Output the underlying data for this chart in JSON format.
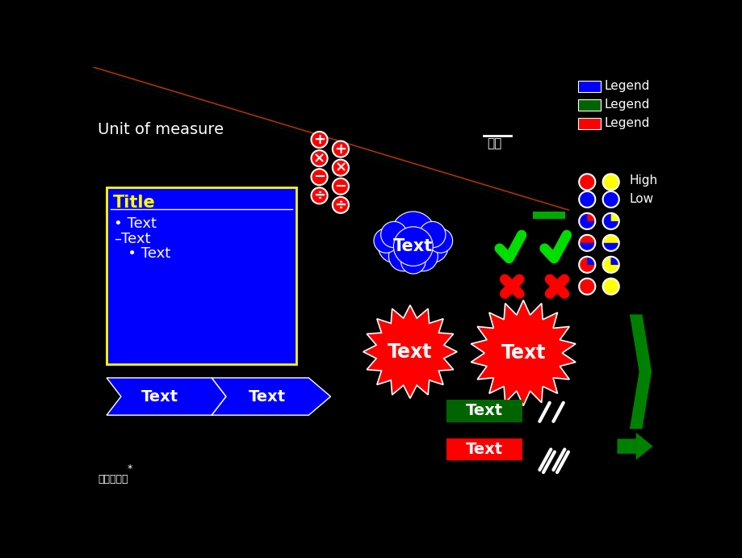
{
  "bg_color": "#000000",
  "title_text": "Unit of measure",
  "title_color": "#ffffff",
  "title_fontsize": 14,
  "legend_items": [
    {
      "color": "#0000ff",
      "label": "Legend"
    },
    {
      "color": "#006400",
      "label": "Legend"
    },
    {
      "color": "#ff0000",
      "label": "Legend"
    }
  ],
  "source_text": "资料来源：",
  "star_text": "*",
  "example_label": "例子",
  "high_label": "High",
  "low_label": "Low",
  "blue_box_title": "Title",
  "blue_box_bullets": [
    "• Text",
    "–Text",
    "   • Text"
  ],
  "arrow_text1": "Text",
  "arrow_text2": "Text",
  "cloud_text": "Text",
  "burst1_text": "Text",
  "burst2_text": "Text",
  "green_rect_text": "Text",
  "red_rect_text": "Text",
  "math_syms": [
    "+",
    "×",
    "−",
    "÷"
  ],
  "pie_configs": [
    [
      790,
      185,
      13,
      [
        [
          "red",
          0,
          360
        ]
      ]
    ],
    [
      828,
      185,
      13,
      [
        [
          "yellow",
          0,
          360
        ]
      ]
    ],
    [
      790,
      213,
      13,
      [
        [
          "blue",
          0,
          360
        ]
      ]
    ],
    [
      828,
      213,
      13,
      [
        [
          "blue",
          0,
          360
        ]
      ]
    ],
    [
      790,
      248,
      13,
      [
        [
          "blue",
          0,
          270
        ],
        [
          "red",
          270,
          360
        ]
      ]
    ],
    [
      828,
      248,
      13,
      [
        [
          "blue",
          0,
          270
        ],
        [
          "yellow",
          270,
          360
        ]
      ]
    ],
    [
      790,
      283,
      13,
      [
        [
          "blue",
          0,
          180
        ],
        [
          "red",
          180,
          360
        ]
      ]
    ],
    [
      828,
      283,
      13,
      [
        [
          "blue",
          0,
          180
        ],
        [
          "yellow",
          180,
          360
        ]
      ]
    ],
    [
      790,
      318,
      13,
      [
        [
          "red",
          0,
          270
        ],
        [
          "blue",
          270,
          360
        ]
      ]
    ],
    [
      828,
      318,
      13,
      [
        [
          "yellow",
          0,
          270
        ],
        [
          "blue",
          270,
          360
        ]
      ]
    ],
    [
      790,
      353,
      13,
      [
        [
          "red",
          0,
          360
        ]
      ]
    ],
    [
      828,
      353,
      13,
      [
        [
          "yellow",
          0,
          360
        ]
      ]
    ]
  ]
}
